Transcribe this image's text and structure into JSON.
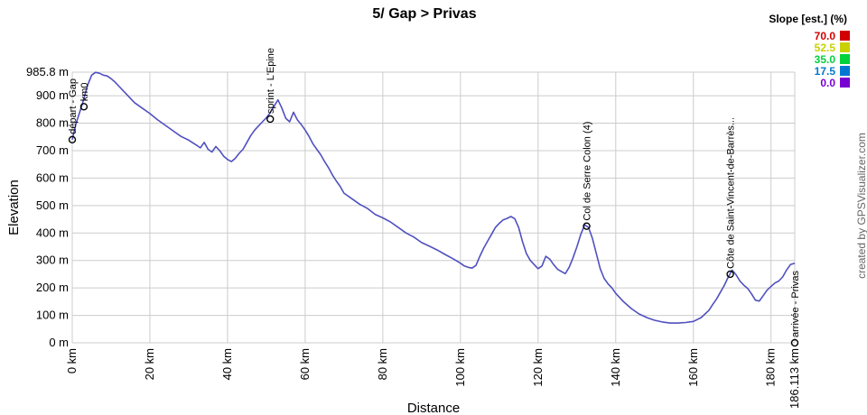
{
  "chart_data": {
    "type": "area",
    "title": "5/ Gap > Privas",
    "xlabel": "Distance",
    "ylabel": "Elevation",
    "xlim": [
      0,
      186.113
    ],
    "ylim": [
      0,
      985.8
    ],
    "x_ticks": [
      0,
      20,
      40,
      60,
      80,
      100,
      120,
      140,
      160,
      180
    ],
    "x_tick_labels": [
      "0 km",
      "20 km",
      "40 km",
      "60 km",
      "80 km",
      "100 km",
      "120 km",
      "140 km",
      "160 km",
      "180 km"
    ],
    "x_end_label": "186.113 km",
    "y_ticks": [
      0,
      100,
      200,
      300,
      400,
      500,
      600,
      700,
      800,
      900
    ],
    "y_tick_labels": [
      "0 m",
      "100 m",
      "200 m",
      "300 m",
      "400 m",
      "500 m",
      "600 m",
      "700 m",
      "800 m",
      "900 m"
    ],
    "y_max_label": "985.8 m",
    "grid": true,
    "series": [
      {
        "x": [
          0,
          1,
          2.5,
          4,
          5,
          6,
          7,
          8,
          9,
          10,
          11,
          12,
          14,
          16,
          18,
          20,
          22,
          24,
          26,
          28,
          30,
          32,
          33,
          34,
          35,
          36,
          37,
          38,
          39,
          40,
          41,
          42,
          43,
          44,
          45,
          46,
          47,
          48,
          49,
          50,
          51,
          52,
          53,
          54,
          55,
          56,
          57,
          58,
          59,
          60,
          61,
          62,
          63,
          64,
          65,
          66,
          67,
          68,
          69,
          70,
          72,
          74,
          76,
          78,
          80,
          82,
          84,
          86,
          88,
          90,
          92,
          94,
          96,
          98,
          100,
          101,
          102,
          103,
          104,
          105,
          106,
          107,
          108,
          109,
          110,
          111,
          112,
          113,
          114,
          115,
          116,
          117,
          118,
          119,
          120,
          121,
          122,
          123,
          124,
          125,
          126,
          127,
          128,
          129,
          130,
          131,
          132,
          133,
          134,
          135,
          136,
          137,
          138,
          139,
          140,
          142,
          144,
          146,
          148,
          150,
          152,
          154,
          156,
          158,
          160,
          162,
          164,
          165,
          166,
          167,
          168,
          169,
          170,
          171,
          172,
          173,
          174,
          175,
          176,
          177,
          178,
          179,
          180,
          181,
          182,
          183,
          184,
          185,
          186.113
        ],
        "y": [
          740,
          800,
          865,
          940,
          975,
          985,
          982,
          975,
          972,
          962,
          950,
          935,
          905,
          875,
          855,
          835,
          812,
          792,
          772,
          752,
          738,
          720,
          710,
          730,
          705,
          695,
          715,
          700,
          680,
          668,
          660,
          672,
          690,
          705,
          730,
          755,
          775,
          790,
          805,
          820,
          838,
          862,
          885,
          855,
          818,
          805,
          840,
          812,
          795,
          775,
          752,
          725,
          705,
          685,
          660,
          638,
          612,
          590,
          570,
          545,
          525,
          505,
          490,
          468,
          455,
          440,
          420,
          400,
          385,
          365,
          352,
          338,
          322,
          307,
          290,
          280,
          275,
          272,
          282,
          315,
          345,
          370,
          395,
          420,
          435,
          448,
          453,
          460,
          452,
          420,
          368,
          325,
          300,
          285,
          270,
          280,
          315,
          305,
          285,
          268,
          260,
          252,
          275,
          310,
          350,
          395,
          430,
          420,
          380,
          325,
          270,
          235,
          215,
          200,
          180,
          150,
          125,
          105,
          92,
          82,
          76,
          72,
          72,
          74,
          78,
          92,
          118,
          140,
          160,
          185,
          210,
          240,
          265,
          248,
          225,
          210,
          198,
          178,
          155,
          152,
          172,
          192,
          205,
          218,
          225,
          240,
          265,
          285,
          290
        ]
      }
    ],
    "waypoints": [
      {
        "x": 0,
        "y": 740,
        "label": "départ - Gap"
      },
      {
        "x": 3,
        "y": 860,
        "label": "km0"
      },
      {
        "x": 51,
        "y": 815,
        "label": "sprint - L'Epine"
      },
      {
        "x": 132.5,
        "y": 425,
        "label": "Col de Serre Colon (4)"
      },
      {
        "x": 169.5,
        "y": 250,
        "label": "Côte de Saint-Vincent-de-Barrès..."
      },
      {
        "x": 186.113,
        "y": 0,
        "label": "arrivée - Privas"
      }
    ],
    "legend": {
      "title": "Slope [est.] (%)",
      "placement": "top-right",
      "items": [
        {
          "label": "70.0",
          "color": "#d20000"
        },
        {
          "label": "52.5",
          "color": "#c8d200"
        },
        {
          "label": "35.0",
          "color": "#00d23c"
        },
        {
          "label": "17.5",
          "color": "#0078d2"
        },
        {
          "label": "0.0",
          "color": "#7800d2"
        }
      ]
    },
    "line_color": "#5050c0",
    "credit": "created by GPSVisualizer.com"
  }
}
